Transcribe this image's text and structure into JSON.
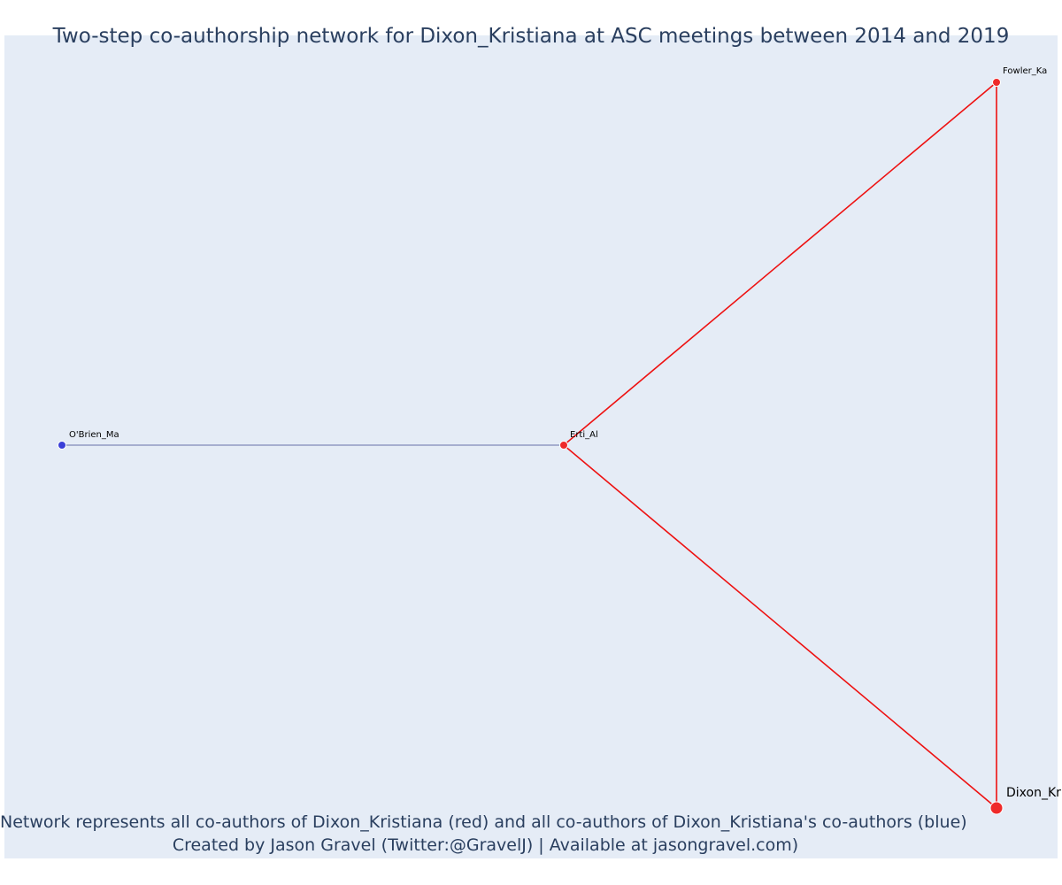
{
  "title": "Two-step co-authorship network for Dixon_Kristiana at ASC meetings between 2014 and 2019",
  "caption": {
    "line1": "Network represents all co-authors of Dixon_Kristiana (red) and all co-authors of Dixon_Kristiana's co-authors (blue)",
    "line2": "Created by Jason Gravel (Twitter:@GravelJ) | Available at jasongravel.com)"
  },
  "colors": {
    "background": "#e5ecf6",
    "coauthor": "#ef2a2a",
    "second_step": "#3b3fd8",
    "coauthor_edge": "#ee1111",
    "second_step_edge": "#6670a8",
    "text": "#2a3f5f"
  },
  "nodes": [
    {
      "id": "Dixon_Kristiana",
      "label": "Dixon_Kr",
      "group": "focal"
    },
    {
      "id": "Fowler_Ka",
      "label": "Fowler_Ka",
      "group": "coauthor"
    },
    {
      "id": "Erti_Al",
      "label": "Erti_Al",
      "group": "coauthor"
    },
    {
      "id": "O'Brien_Ma",
      "label": "O'Brien_Ma",
      "group": "second_step"
    }
  ],
  "edges": [
    {
      "source": "Erti_Al",
      "target": "Fowler_Ka",
      "group": "coauthor"
    },
    {
      "source": "Erti_Al",
      "target": "Dixon_Kristiana",
      "group": "coauthor"
    },
    {
      "source": "Fowler_Ka",
      "target": "Dixon_Kristiana",
      "group": "coauthor"
    },
    {
      "source": "O'Brien_Ma",
      "target": "Erti_Al",
      "group": "second_step"
    }
  ]
}
